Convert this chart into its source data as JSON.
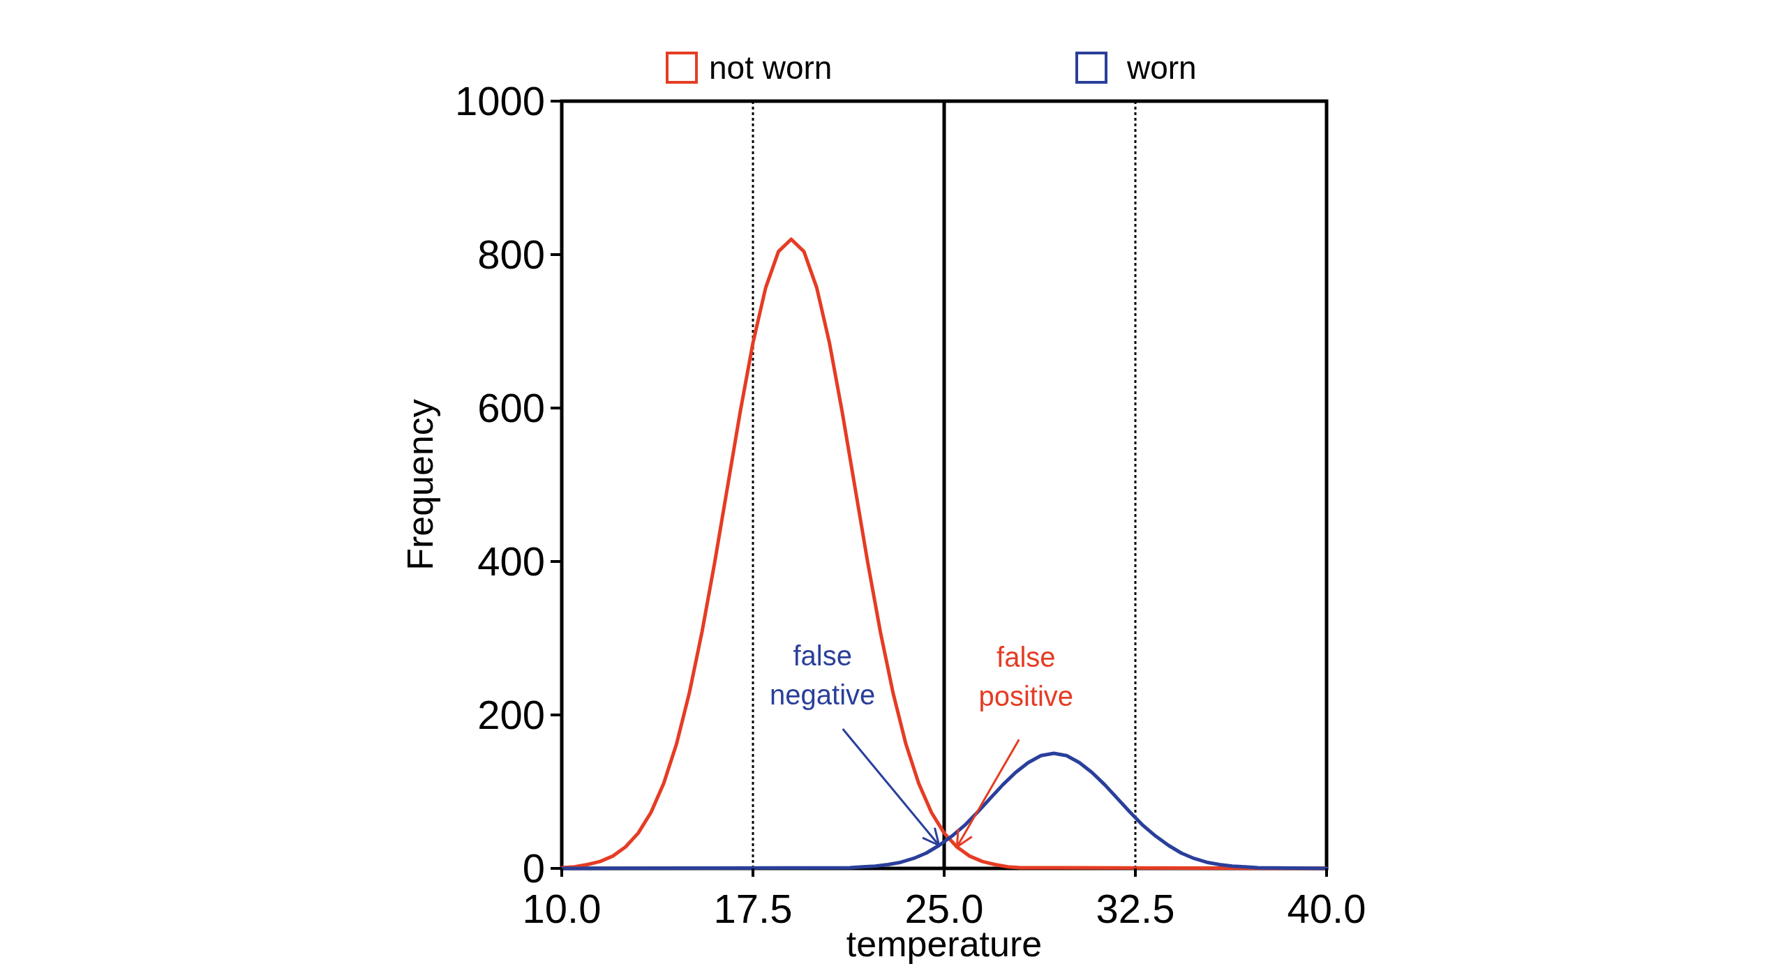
{
  "chart_data": {
    "type": "line",
    "xlabel": "temperature",
    "ylabel": "Frequency",
    "xlim": [
      10,
      40
    ],
    "xticks": [
      {
        "value": 10,
        "label": "10.0"
      },
      {
        "value": 17.5,
        "label": "17.5"
      },
      {
        "value": 25,
        "label": "25.0"
      },
      {
        "value": 32.5,
        "label": "32.5"
      },
      {
        "value": 40,
        "label": "40.0"
      }
    ],
    "ylim": [
      0,
      1000
    ],
    "yticks": [
      0,
      200,
      400,
      600,
      800,
      1000
    ],
    "grid": false,
    "legend": "top",
    "marker": "none",
    "line_style": "solid",
    "series": [
      {
        "name": "not worn",
        "color": "#e53c24",
        "x": [
          10,
          10.5,
          11,
          11.5,
          12,
          12.5,
          13,
          13.5,
          14,
          14.5,
          15,
          15.5,
          16,
          16.5,
          17,
          17.5,
          18,
          18.5,
          19,
          19.5,
          20,
          20.5,
          21,
          21.5,
          22,
          22.5,
          23,
          23.5,
          24,
          24.5,
          25,
          25.5,
          26,
          26.5,
          27,
          27.5,
          28,
          40
        ],
        "values": [
          1,
          2,
          5,
          9,
          16,
          28,
          46,
          73,
          111,
          162,
          228,
          308,
          399,
          497,
          595,
          685,
          757,
          804,
          820,
          804,
          757,
          685,
          595,
          497,
          399,
          308,
          228,
          162,
          111,
          73,
          46,
          28,
          16,
          9,
          5,
          2,
          1,
          0
        ]
      },
      {
        "name": "worn",
        "color": "#2a3f9a",
        "x": [
          10,
          21.3,
          21.8,
          22.3,
          22.8,
          23.3,
          23.8,
          24.3,
          24.8,
          25.3,
          25.8,
          26.3,
          26.8,
          27.3,
          27.8,
          28.3,
          28.8,
          29.3,
          29.8,
          30.3,
          30.8,
          31.3,
          31.8,
          32.3,
          32.8,
          33.3,
          33.8,
          34.3,
          34.8,
          35.3,
          35.8,
          36.3,
          36.8,
          37.3,
          40
        ],
        "values": [
          0,
          1,
          2,
          3,
          5,
          8,
          13,
          20,
          30,
          42,
          56,
          73,
          91,
          109,
          125,
          138,
          147,
          150,
          147,
          138,
          125,
          109,
          91,
          73,
          56,
          42,
          30,
          20,
          13,
          8,
          5,
          3,
          2,
          1,
          0
        ]
      }
    ],
    "ref_lines": [
      {
        "axis": "x",
        "value": 17.5,
        "color": "#000000",
        "line_style": "dotted"
      },
      {
        "axis": "x",
        "value": 25,
        "color": "#000000",
        "line_style": "solid"
      },
      {
        "axis": "x",
        "value": 32.5,
        "color": "#000000",
        "line_style": "dotted"
      }
    ],
    "annotations": [
      {
        "text": "false negative",
        "x": 24.8,
        "y": 30
      },
      {
        "text": "false positive",
        "x": 25.5,
        "y": 28
      }
    ]
  }
}
